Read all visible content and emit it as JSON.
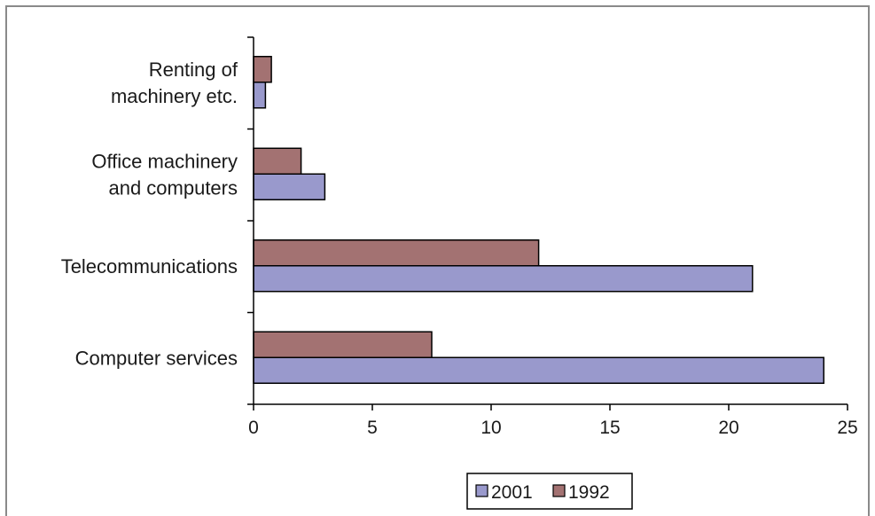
{
  "chart_data": {
    "type": "bar",
    "orientation": "horizontal",
    "categories": [
      [
        "Computer services"
      ],
      [
        "Telecommunications"
      ],
      [
        "Office machinery",
        "and computers"
      ],
      [
        "Renting of",
        "machinery etc."
      ]
    ],
    "series": [
      {
        "name": "2001",
        "color": "#9999cc",
        "values": [
          24,
          21,
          3,
          0.5
        ]
      },
      {
        "name": "1992",
        "color": "#a37272",
        "values": [
          7.5,
          12,
          2,
          0.75
        ]
      }
    ],
    "x_ticks": [
      "0",
      "5",
      "10",
      "15",
      "20",
      "25"
    ],
    "xlim": [
      0,
      25
    ],
    "grid": false,
    "legend_position": "bottom",
    "legend_order": [
      "2001",
      "1992"
    ]
  }
}
